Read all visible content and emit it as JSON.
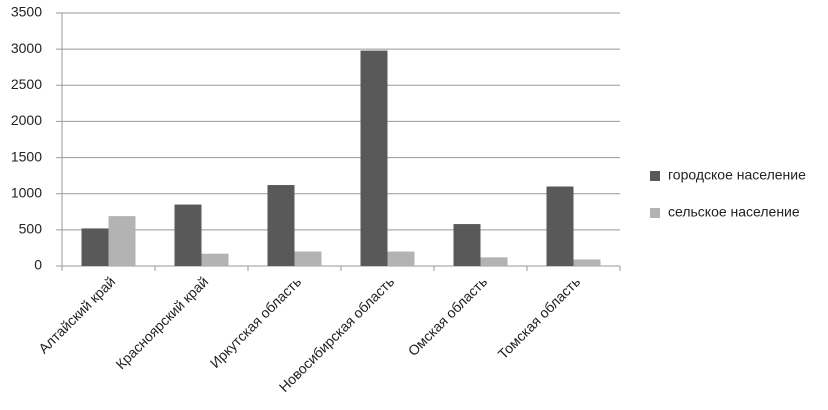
{
  "chart_data": {
    "type": "bar",
    "categories": [
      "Алтайский край",
      "Красноярский край",
      "Иркутская область",
      "Новосибирская область",
      "Омская область",
      "Томская область"
    ],
    "series": [
      {
        "name": "городское население",
        "color": "#595959",
        "values": [
          520,
          850,
          1120,
          2980,
          580,
          1100
        ]
      },
      {
        "name": "сельское население",
        "color": "#b3b3b3",
        "values": [
          690,
          170,
          200,
          200,
          120,
          90
        ]
      }
    ],
    "ylim": [
      0,
      3500
    ],
    "yticks": [
      0,
      500,
      1000,
      1500,
      2000,
      2500,
      3000,
      3500
    ],
    "grid": true,
    "legend": "right"
  }
}
